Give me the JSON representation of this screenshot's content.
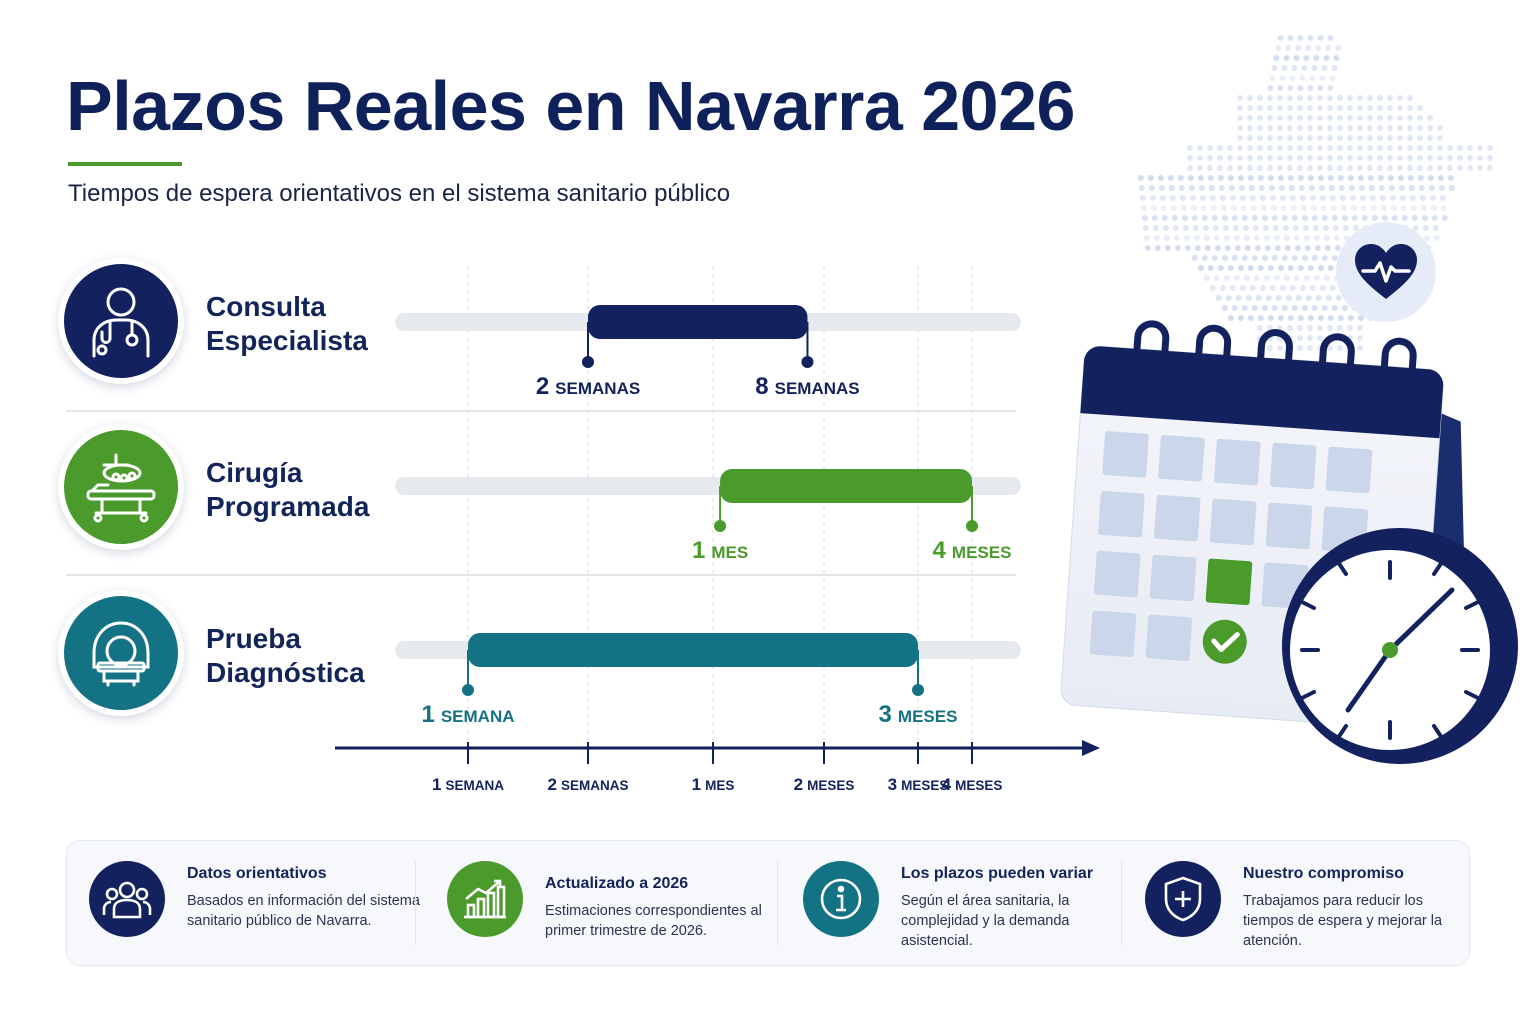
{
  "header": {
    "title": "Plazos Reales en Navarra 2026",
    "subtitle": "Tiempos de espera orientativos en el sistema sanitario público"
  },
  "colors": {
    "navy": "#13225e",
    "green": "#4a9a2c",
    "teal": "#137384",
    "track": "#e6e9ee"
  },
  "chart_data": {
    "type": "range-bar",
    "x_axis": {
      "scale": "ordinal-time",
      "ticks": [
        "1 semana",
        "2 semanas",
        "1 mes",
        "2 meses",
        "3 meses",
        "4 meses"
      ],
      "tick_weeks": [
        1,
        2,
        4,
        8.7,
        13,
        17.4
      ]
    },
    "series": [
      {
        "name": "Consulta Especialista",
        "line1": "Consulta",
        "line2": "Especialista",
        "icon": "doctor-icon",
        "color": "#13225e",
        "min_weeks": 2,
        "max_weeks": 8,
        "min_label_num": "2",
        "min_label_unit": "semanas",
        "max_label_num": "8",
        "max_label_unit": "semanas"
      },
      {
        "name": "Cirugía Programada",
        "line1": "Cirugía",
        "line2": "Programada",
        "icon": "surgery-icon",
        "color": "#4a9a2c",
        "min_weeks": 4.3,
        "max_weeks": 17.4,
        "min_label_num": "1",
        "min_label_unit": "mes",
        "max_label_num": "4",
        "max_label_unit": "meses"
      },
      {
        "name": "Prueba Diagnóstica",
        "line1": "Prueba",
        "line2": "Diagnóstica",
        "icon": "mri-scanner-icon",
        "color": "#137384",
        "min_weeks": 1,
        "max_weeks": 13,
        "min_label_num": "1",
        "min_label_unit": "semana",
        "max_label_num": "3",
        "max_label_unit": "meses"
      }
    ]
  },
  "info_panel": [
    {
      "icon": "people-icon",
      "color": "#13225e",
      "title": "Datos orientativos",
      "text": "Basados en información del sistema sanitario público de Navarra."
    },
    {
      "icon": "growth-chart-icon",
      "color": "#4a9a2c",
      "title": "Actualizado a 2026",
      "text": "Estimaciones correspondientes al primer trimestre de 2026."
    },
    {
      "icon": "info-icon",
      "color": "#137384",
      "title": "Los plazos pueden variar",
      "text": "Según el área sanitaria, la complejidad y la demanda asistencial."
    },
    {
      "icon": "shield-plus-icon",
      "color": "#13225e",
      "title": "Nuestro compromiso",
      "text": "Trabajamos para reducir los tiempos de espera y mejorar la atención."
    }
  ]
}
